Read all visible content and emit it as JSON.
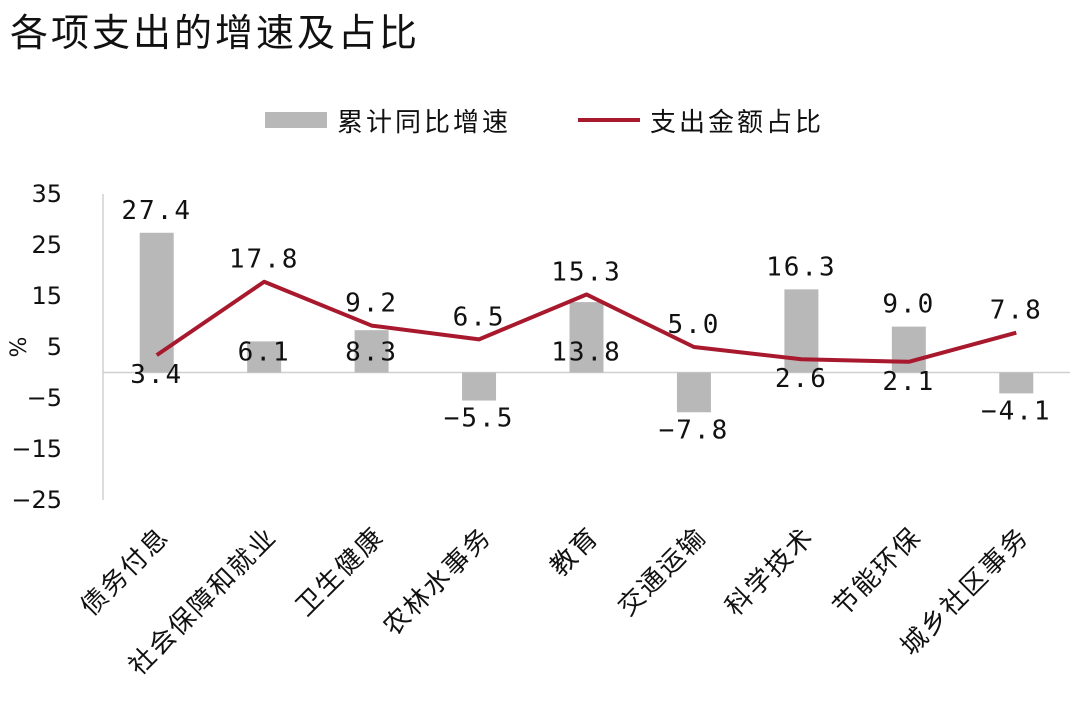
{
  "chart_data": {
    "type": "bar",
    "title": "各项支出的增速及占比",
    "ylabel": "%",
    "ylim": [
      -25,
      35
    ],
    "yticks": [
      35,
      25,
      15,
      5,
      -5,
      -15,
      -25
    ],
    "grid": false,
    "legend": "top",
    "categories": [
      "债务付息",
      "社会保障和就业",
      "卫生健康",
      "农林水事务",
      "教育",
      "交通运输",
      "科学技术",
      "节能环保",
      "城乡社区事务"
    ],
    "series": [
      {
        "name": "累计同比增速",
        "type": "bar",
        "color": "#b8b8b8",
        "values": [
          27.4,
          6.1,
          8.3,
          -5.5,
          13.8,
          -7.8,
          16.3,
          9.0,
          -4.1
        ]
      },
      {
        "name": "支出金额占比",
        "type": "line",
        "color": "#a8192e",
        "values": [
          3.4,
          17.8,
          9.2,
          6.5,
          15.3,
          5.0,
          2.6,
          2.1,
          7.8
        ]
      }
    ]
  }
}
